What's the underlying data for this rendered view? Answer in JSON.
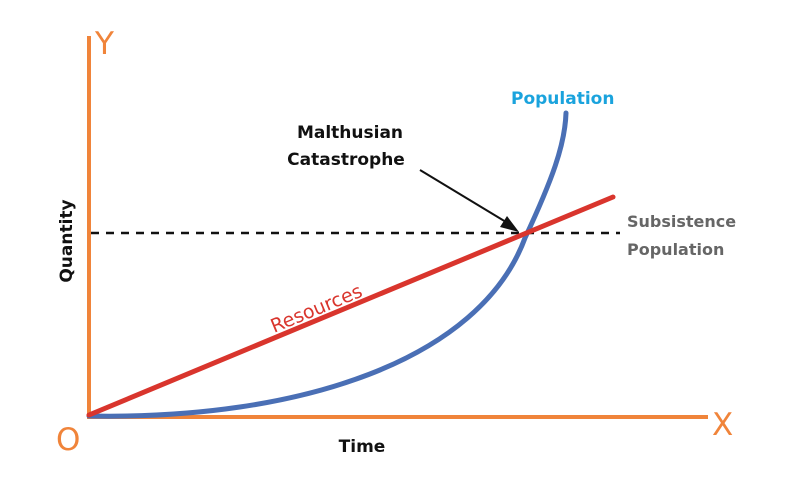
{
  "colors": {
    "axis": "#f0843a",
    "population": "#4a6fb5",
    "resources": "#d9352d",
    "population_label": "#1aa3dd",
    "subsistence": "#666666",
    "text": "#111111",
    "dashed": "#111111"
  },
  "labels": {
    "origin": "O",
    "x_axis": "X",
    "y_axis": "Y",
    "xlabel": "Time",
    "ylabel": "Quantity",
    "population": "Population",
    "resources": "Resources",
    "catastrophe_line1": "Malthusian",
    "catastrophe_line2": "Catastrophe",
    "subsistence_line1": "Subsistence",
    "subsistence_line2": "Population"
  },
  "diagram": {
    "population_curve": "exponential",
    "resources_line": "linear",
    "subsistence_level": "dashed horizontal"
  }
}
